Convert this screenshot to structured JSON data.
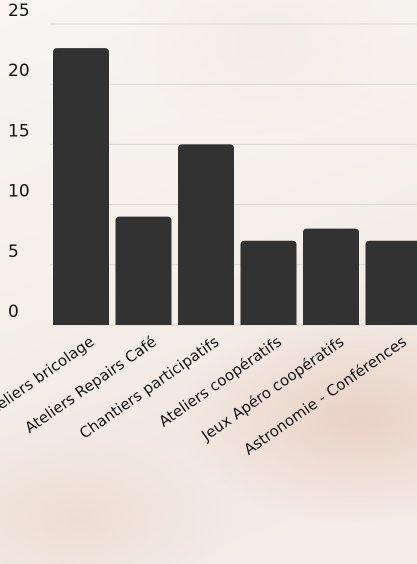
{
  "chart_data": {
    "type": "bar",
    "categories": [
      "Ateliers bricolage",
      "Ateliers Repairs Café",
      "Chantiers participatifs",
      "Ateliers coopératifs",
      "Jeux Apéro coopératifs",
      "Astronomie - Conférences"
    ],
    "values": [
      23,
      9,
      15,
      7,
      8,
      7
    ],
    "ylim": [
      0,
      25
    ],
    "yticks": [
      0,
      5,
      10,
      15,
      20,
      25
    ],
    "grid": true,
    "bar_color": "#323232",
    "grid_color": "#d9d6d3"
  }
}
